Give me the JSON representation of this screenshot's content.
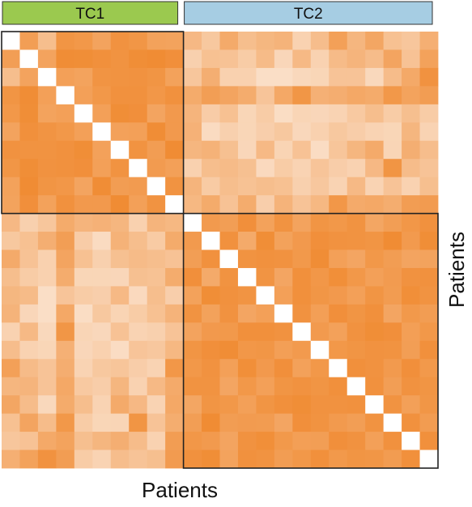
{
  "chart_data": {
    "type": "heatmap",
    "xlabel": "Patients",
    "ylabel": "Patients",
    "groups": [
      {
        "name": "TC1",
        "size": 10,
        "color": "#9bc94f"
      },
      {
        "name": "TC2",
        "size": 14,
        "color": "#a6cde3"
      }
    ],
    "colors": {
      "high": "#f08a31",
      "low": "#fbe5d3",
      "diagonal": "#ffffff",
      "border": "#222222"
    },
    "scale": [
      0,
      1
    ],
    "matrix": [
      [
        0.0,
        0.78,
        0.43,
        0.88,
        0.85,
        0.72,
        0.91,
        0.87,
        0.74,
        0.73,
        0.49,
        0.32,
        0.65,
        0.43,
        0.51,
        0.55,
        0.21,
        0.44,
        0.76,
        0.52,
        0.69,
        0.4,
        0.34,
        0.59
      ],
      [
        0.78,
        0.0,
        0.72,
        0.97,
        0.96,
        0.93,
        0.9,
        0.96,
        0.98,
        0.94,
        0.23,
        0.4,
        0.38,
        0.28,
        0.46,
        0.16,
        0.48,
        0.21,
        0.46,
        0.54,
        0.45,
        0.71,
        0.38,
        0.74
      ],
      [
        0.43,
        0.72,
        0.0,
        0.76,
        0.73,
        0.89,
        0.9,
        0.91,
        0.88,
        0.74,
        0.34,
        0.6,
        0.22,
        0.22,
        0.08,
        0.08,
        0.14,
        0.17,
        0.37,
        0.37,
        0.14,
        0.45,
        0.66,
        0.91
      ],
      [
        0.88,
        0.97,
        0.76,
        0.0,
        0.76,
        0.85,
        0.92,
        0.92,
        0.86,
        0.92,
        0.64,
        0.78,
        0.71,
        0.63,
        0.36,
        0.67,
        0.87,
        0.58,
        0.61,
        0.67,
        0.64,
        0.85,
        0.73,
        0.79
      ],
      [
        0.85,
        0.96,
        0.73,
        0.76,
        0.0,
        0.76,
        0.96,
        0.94,
        0.71,
        0.83,
        0.54,
        0.27,
        0.4,
        0.17,
        0.28,
        0.09,
        0.18,
        0.16,
        0.2,
        0.31,
        0.43,
        0.28,
        0.42,
        0.28
      ],
      [
        0.72,
        0.93,
        0.89,
        0.85,
        0.76,
        0.0,
        0.75,
        0.76,
        0.97,
        0.83,
        0.57,
        0.11,
        0.23,
        0.17,
        0.25,
        0.32,
        0.15,
        0.22,
        0.32,
        0.26,
        0.2,
        0.17,
        0.52,
        0.2
      ],
      [
        0.91,
        0.9,
        0.9,
        0.92,
        0.96,
        0.75,
        0.0,
        0.9,
        0.79,
        0.98,
        0.52,
        0.56,
        0.41,
        0.16,
        0.48,
        0.19,
        0.38,
        0.1,
        0.35,
        0.52,
        0.65,
        0.18,
        0.6,
        0.44
      ],
      [
        0.87,
        0.96,
        0.91,
        0.92,
        0.94,
        0.76,
        0.9,
        0.0,
        0.81,
        0.76,
        0.22,
        0.43,
        0.46,
        0.41,
        0.13,
        0.28,
        0.2,
        0.36,
        0.26,
        0.21,
        0.49,
        0.88,
        0.45,
        0.37
      ],
      [
        0.74,
        0.98,
        0.88,
        0.86,
        0.71,
        0.97,
        0.79,
        0.81,
        0.0,
        0.9,
        0.54,
        0.29,
        0.43,
        0.39,
        0.43,
        0.4,
        0.23,
        0.33,
        0.2,
        0.48,
        0.2,
        0.37,
        0.21,
        0.42
      ],
      [
        0.73,
        0.94,
        0.74,
        0.92,
        0.83,
        0.83,
        0.98,
        0.76,
        0.9,
        0.0,
        0.5,
        0.64,
        0.38,
        0.63,
        0.25,
        0.55,
        0.37,
        0.5,
        0.86,
        0.65,
        0.67,
        0.62,
        0.79,
        0.81
      ],
      [
        0.49,
        0.23,
        0.34,
        0.64,
        0.54,
        0.57,
        0.52,
        0.22,
        0.54,
        0.5,
        0.0,
        0.82,
        0.78,
        0.94,
        0.74,
        0.9,
        0.72,
        0.88,
        0.85,
        0.9,
        0.69,
        0.78,
        0.86,
        0.92
      ],
      [
        0.32,
        0.4,
        0.6,
        0.78,
        0.27,
        0.11,
        0.56,
        0.43,
        0.29,
        0.64,
        0.82,
        0.0,
        0.92,
        0.65,
        0.96,
        0.74,
        0.83,
        0.94,
        0.91,
        0.9,
        0.88,
        0.98,
        0.82,
        0.96
      ],
      [
        0.65,
        0.38,
        0.22,
        0.71,
        0.4,
        0.23,
        0.41,
        0.46,
        0.43,
        0.38,
        0.78,
        0.92,
        0.0,
        0.9,
        0.92,
        0.91,
        0.84,
        0.97,
        0.76,
        0.7,
        0.85,
        0.79,
        0.71,
        0.73
      ],
      [
        0.43,
        0.28,
        0.22,
        0.63,
        0.17,
        0.17,
        0.16,
        0.41,
        0.39,
        0.63,
        0.94,
        0.65,
        0.9,
        0.0,
        0.89,
        0.7,
        0.93,
        0.86,
        0.95,
        0.85,
        0.76,
        0.81,
        0.91,
        0.92
      ],
      [
        0.51,
        0.46,
        0.08,
        0.36,
        0.28,
        0.25,
        0.48,
        0.13,
        0.43,
        0.25,
        0.74,
        0.96,
        0.92,
        0.89,
        0.0,
        0.76,
        0.93,
        0.87,
        0.83,
        0.76,
        0.88,
        0.8,
        0.95,
        0.9
      ],
      [
        0.55,
        0.16,
        0.08,
        0.67,
        0.09,
        0.32,
        0.19,
        0.28,
        0.4,
        0.55,
        0.9,
        0.74,
        0.91,
        0.7,
        0.76,
        0.0,
        0.91,
        0.77,
        0.94,
        0.88,
        0.93,
        0.7,
        0.84,
        0.79
      ],
      [
        0.21,
        0.48,
        0.14,
        0.87,
        0.18,
        0.15,
        0.38,
        0.2,
        0.23,
        0.37,
        0.72,
        0.83,
        0.84,
        0.93,
        0.93,
        0.91,
        0.0,
        0.82,
        0.75,
        0.91,
        0.96,
        0.94,
        0.77,
        0.85
      ],
      [
        0.44,
        0.21,
        0.17,
        0.58,
        0.16,
        0.22,
        0.1,
        0.36,
        0.33,
        0.5,
        0.88,
        0.94,
        0.97,
        0.86,
        0.87,
        0.77,
        0.82,
        0.0,
        0.85,
        0.88,
        0.91,
        0.9,
        0.78,
        0.93
      ],
      [
        0.76,
        0.46,
        0.37,
        0.61,
        0.2,
        0.32,
        0.35,
        0.26,
        0.2,
        0.86,
        0.85,
        0.91,
        0.76,
        0.95,
        0.83,
        0.94,
        0.75,
        0.85,
        0.0,
        0.93,
        0.91,
        0.82,
        0.94,
        0.84
      ],
      [
        0.52,
        0.54,
        0.37,
        0.67,
        0.31,
        0.26,
        0.52,
        0.21,
        0.48,
        0.65,
        0.9,
        0.9,
        0.7,
        0.85,
        0.76,
        0.88,
        0.91,
        0.88,
        0.93,
        0.0,
        0.92,
        0.78,
        0.91,
        0.88
      ],
      [
        0.69,
        0.45,
        0.14,
        0.64,
        0.43,
        0.2,
        0.65,
        0.49,
        0.2,
        0.67,
        0.69,
        0.88,
        0.85,
        0.76,
        0.88,
        0.93,
        0.96,
        0.91,
        0.91,
        0.92,
        0.0,
        0.9,
        0.76,
        0.87
      ],
      [
        0.4,
        0.71,
        0.45,
        0.85,
        0.28,
        0.17,
        0.18,
        0.88,
        0.37,
        0.62,
        0.78,
        0.98,
        0.79,
        0.81,
        0.8,
        0.7,
        0.94,
        0.9,
        0.82,
        0.78,
        0.9,
        0.0,
        0.92,
        0.8
      ],
      [
        0.34,
        0.38,
        0.66,
        0.73,
        0.42,
        0.52,
        0.6,
        0.45,
        0.21,
        0.79,
        0.86,
        0.82,
        0.71,
        0.91,
        0.95,
        0.84,
        0.77,
        0.78,
        0.94,
        0.91,
        0.76,
        0.92,
        0.0,
        0.93
      ],
      [
        0.59,
        0.74,
        0.91,
        0.79,
        0.28,
        0.2,
        0.44,
        0.37,
        0.42,
        0.81,
        0.92,
        0.96,
        0.73,
        0.92,
        0.9,
        0.79,
        0.85,
        0.93,
        0.84,
        0.88,
        0.87,
        0.8,
        0.93,
        0.0
      ]
    ]
  }
}
